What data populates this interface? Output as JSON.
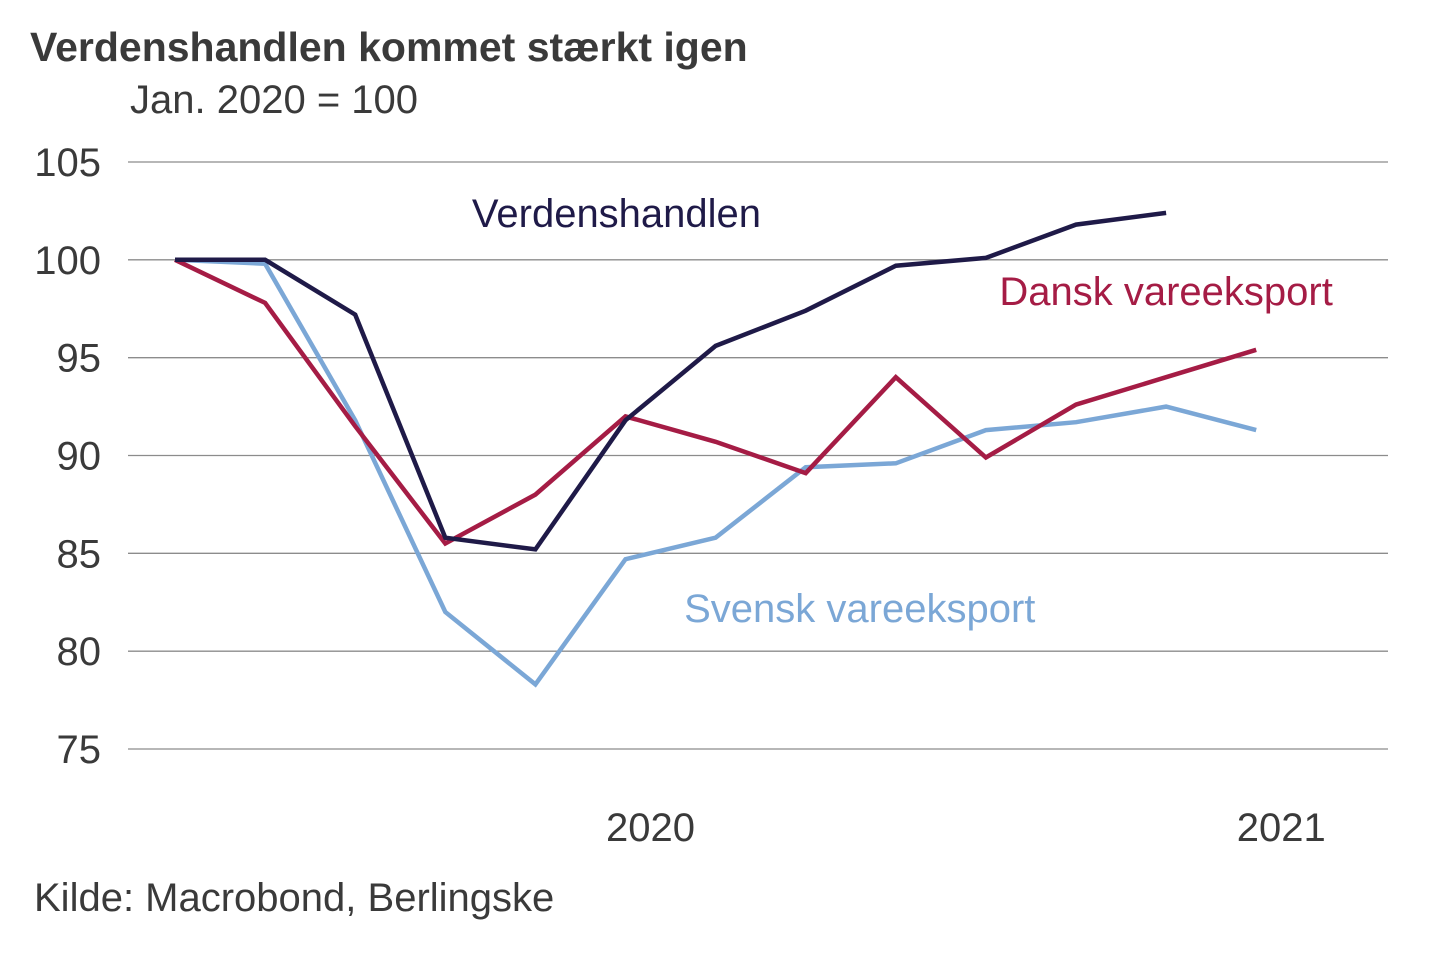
{
  "title": "Verdenshandlen kommet stærkt igen",
  "subtitle": "Jan. 2020 = 100",
  "source": "Kilde: Macrobond, Berlingske",
  "chart_data": {
    "type": "line",
    "title": "Verdenshandlen kommet stærkt igen",
    "subtitle": "Jan. 2020 = 100",
    "xlabel": "",
    "ylabel": "",
    "x": [
      0,
      1,
      2,
      3,
      4,
      5,
      6,
      7,
      8,
      9,
      10,
      11,
      12
    ],
    "xlim": [
      -0.5,
      13.0
    ],
    "ylim": [
      75,
      105
    ],
    "yticks": [
      105,
      100,
      95,
      90,
      85,
      80,
      75
    ],
    "grid": true,
    "xtick_labels": [
      {
        "x": 5.5,
        "label": "2020"
      },
      {
        "x": 12.5,
        "label": "2021"
      }
    ],
    "series": [
      {
        "name": "Verdenshandlen",
        "color": "#1f1a48",
        "values": [
          100,
          100,
          97.2,
          85.8,
          85.2,
          91.8,
          95.6,
          97.4,
          99.7,
          100.1,
          101.8,
          102.4,
          null
        ],
        "label_x": 4.9,
        "label_y": 102.4
      },
      {
        "name": "Dansk vareeksport",
        "color": "#a51c45",
        "values": [
          100,
          97.8,
          91.5,
          85.5,
          88.0,
          92.0,
          90.7,
          89.1,
          94.0,
          89.9,
          92.6,
          94.0,
          95.4
        ],
        "label_x": 11.0,
        "label_y": 98.4
      },
      {
        "name": "Svensk vareeksport",
        "color": "#7ba7d6",
        "values": [
          100,
          99.8,
          91.8,
          82.0,
          78.3,
          84.7,
          85.8,
          89.4,
          89.6,
          91.3,
          91.7,
          92.5,
          91.3
        ],
        "label_x": 7.6,
        "label_y": 82.2
      }
    ]
  }
}
